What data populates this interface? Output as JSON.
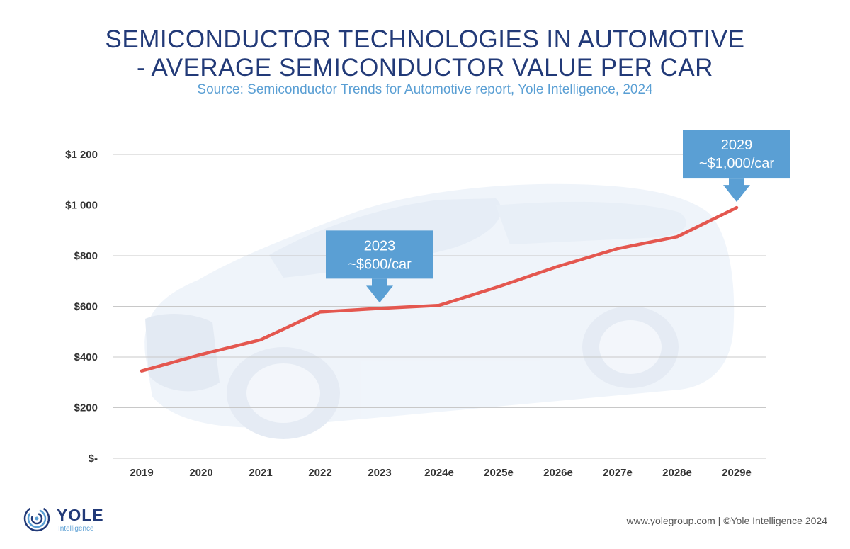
{
  "header": {
    "title_line1": "SEMICONDUCTOR TECHNOLOGIES IN AUTOMOTIVE",
    "title_line2": "- AVERAGE SEMICONDUCTOR VALUE PER CAR",
    "subtitle": "Source: Semiconductor Trends for Automotive report, Yole Intelligence, 2024"
  },
  "chart_data": {
    "type": "line",
    "title": "SEMICONDUCTOR TECHNOLOGIES IN AUTOMOTIVE - AVERAGE SEMICONDUCTOR VALUE PER CAR",
    "subtitle": "Source: Semiconductor Trends for Automotive report, Yole Intelligence, 2024",
    "xlabel": "",
    "ylabel": "",
    "categories": [
      "2019",
      "2020",
      "2021",
      "2022",
      "2023",
      "2024e",
      "2025e",
      "2026e",
      "2027e",
      "2028e",
      "2029e"
    ],
    "series": [
      {
        "name": "Average semiconductor value per car",
        "values": [
          345,
          410,
          468,
          578,
          592,
          604,
          678,
          758,
          828,
          875,
          990
        ]
      }
    ],
    "ylim": [
      0,
      1200
    ],
    "yticks": [
      0,
      200,
      400,
      600,
      800,
      1000,
      1200
    ],
    "ytick_labels": [
      "$-",
      "$200",
      "$400",
      "$600",
      "$800",
      "$1 000",
      "$1 200"
    ],
    "grid": true,
    "line_color": "#e4574f",
    "annotations": [
      {
        "category": "2023",
        "line1": "2023",
        "line2": "~$600/car"
      },
      {
        "category": "2029e",
        "line1": "2029",
        "line2": "~$1,000/car"
      }
    ]
  },
  "colors": {
    "title": "#223a78",
    "subtitle": "#5a9fd4",
    "callout": "#5a9fd4",
    "grid": "#c8c8c8"
  },
  "logo": {
    "name": "YOLE",
    "tagline": "Intelligence"
  },
  "footer": {
    "text": "www.yolegroup.com | ©Yole Intelligence 2024"
  }
}
